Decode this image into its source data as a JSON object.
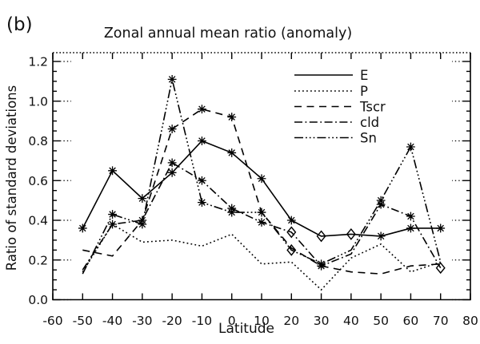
{
  "chart_data": {
    "type": "line",
    "panel_label": "(b)",
    "title": "Zonal annual mean ratio (anomaly)",
    "xlabel": "Latitude",
    "ylabel": "Ratio of standard deviations",
    "xlim": [
      -60,
      80
    ],
    "ylim": [
      0,
      1.2
    ],
    "x_tick_values": [
      -60,
      -50,
      -40,
      -30,
      -20,
      -10,
      0,
      10,
      20,
      30,
      40,
      50,
      60,
      70,
      80
    ],
    "x_tick_labels": [
      "-60",
      "-50",
      "-40",
      "-30",
      "-20",
      "-10",
      "0",
      "10",
      "20",
      "30",
      "40",
      "50",
      "60",
      "70",
      "80"
    ],
    "y_tick_values": [
      0.0,
      0.2,
      0.4,
      0.6,
      0.8,
      1.0,
      1.2
    ],
    "y_tick_labels": [
      "0.0",
      "0.2",
      "0.4",
      "0.6",
      "0.8",
      "1.0",
      "1.2"
    ],
    "y_minor_tick_step": 0.05,
    "grid": false,
    "legend_position": "top-right-inside",
    "x": [
      -50,
      -40,
      -30,
      -20,
      -10,
      0,
      10,
      20,
      30,
      40,
      50,
      60,
      70
    ],
    "series": [
      {
        "name": "E",
        "style": "solid",
        "marker": "asterisk",
        "values": [
          0.36,
          0.65,
          0.51,
          0.64,
          0.8,
          0.74,
          0.61,
          0.4,
          0.32,
          0.33,
          0.32,
          0.36,
          0.36
        ],
        "asterisk_at": [
          -50,
          -40,
          -30,
          -20,
          -10,
          0,
          10,
          20,
          50,
          60,
          70
        ],
        "diamond_at": [
          30,
          40
        ]
      },
      {
        "name": "P",
        "style": "dotted",
        "marker": "none",
        "values": [
          0.14,
          0.38,
          0.29,
          0.3,
          0.27,
          0.33,
          0.18,
          0.19,
          0.05,
          0.21,
          0.28,
          0.14,
          0.19
        ],
        "asterisk_at": [],
        "diamond_at": []
      },
      {
        "name": "Tscr",
        "style": "dashed",
        "marker": "asterisk",
        "values": [
          0.25,
          0.22,
          0.4,
          0.86,
          0.96,
          0.92,
          0.44,
          0.26,
          0.17,
          0.14,
          0.13,
          0.17,
          0.18
        ],
        "asterisk_at": [
          -20,
          -10,
          0,
          10
        ],
        "diamond_at": []
      },
      {
        "name": "cld",
        "style": "dash-dot",
        "marker": "asterisk",
        "values": [
          0.15,
          0.38,
          0.4,
          0.69,
          0.6,
          0.46,
          0.39,
          0.34,
          0.17,
          0.23,
          0.48,
          0.42,
          0.16
        ],
        "asterisk_at": [
          -40,
          -30,
          -20,
          -10,
          0,
          10,
          30,
          50,
          60
        ],
        "diamond_at": [
          20,
          70
        ]
      },
      {
        "name": "Sn",
        "style": "dash-dot-dot-dot",
        "marker": "asterisk",
        "values": [
          0.13,
          0.43,
          0.38,
          1.11,
          0.49,
          0.44,
          0.44,
          0.25,
          0.18,
          0.25,
          0.5,
          0.77,
          0.19
        ],
        "asterisk_at": [
          -40,
          -30,
          -20,
          -10,
          0,
          30,
          50,
          60
        ],
        "diamond_at": [
          20
        ]
      }
    ],
    "colors": {
      "line": "#000000",
      "background": "#ffffff"
    }
  }
}
